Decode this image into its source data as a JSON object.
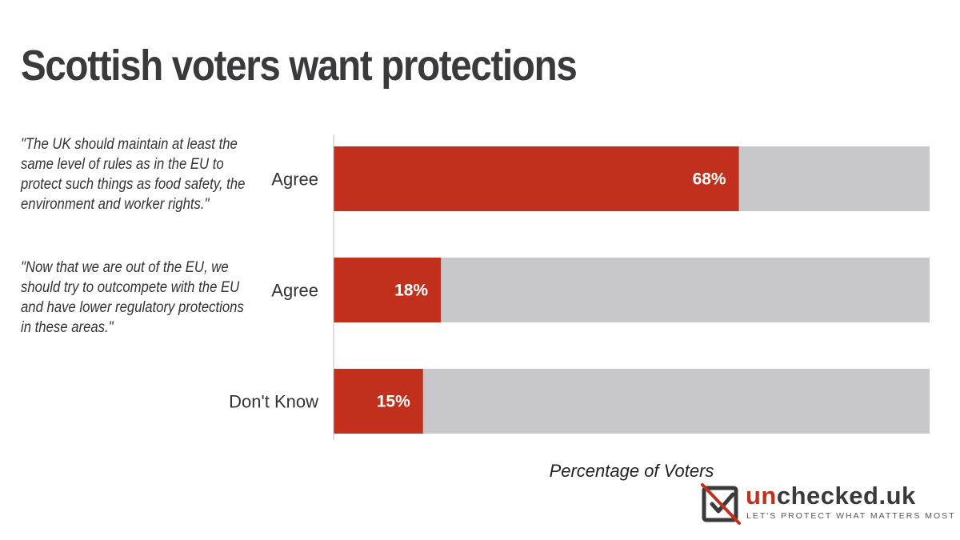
{
  "title": "Scottish voters want protections",
  "quotes": [
    "\"The UK should  maintain at least the same level of rules as in the EU to protect such things as food safety, the environment and worker rights.\"",
    "\"Now that we are out of the EU, we should try to outcompete with the EU and have lower regulatory protections in these areas.\""
  ],
  "brand": {
    "name_highlight": "un",
    "name_rest": "checked.uk",
    "tagline": "LET'S PROTECT WHAT MATTERS MOST",
    "accent_color": "#c0301c",
    "dark_color": "#3a3a3c"
  },
  "chart_data": {
    "type": "bar",
    "orientation": "horizontal",
    "title": "Scottish voters want protections",
    "xlabel": "Percentage of Voters",
    "ylabel": "",
    "categories": [
      "Agree",
      "Agree",
      "Don't Know"
    ],
    "series": [
      {
        "name": "Percentage of Voters",
        "values": [
          68,
          18,
          15
        ],
        "labels": [
          "68%",
          "18%",
          "15%"
        ],
        "color": "#c0301c"
      }
    ],
    "background_bar_max": 100,
    "background_bar_color": "#c8c8ca",
    "xlim": [
      0,
      100
    ],
    "grid": false,
    "legend": "none"
  }
}
